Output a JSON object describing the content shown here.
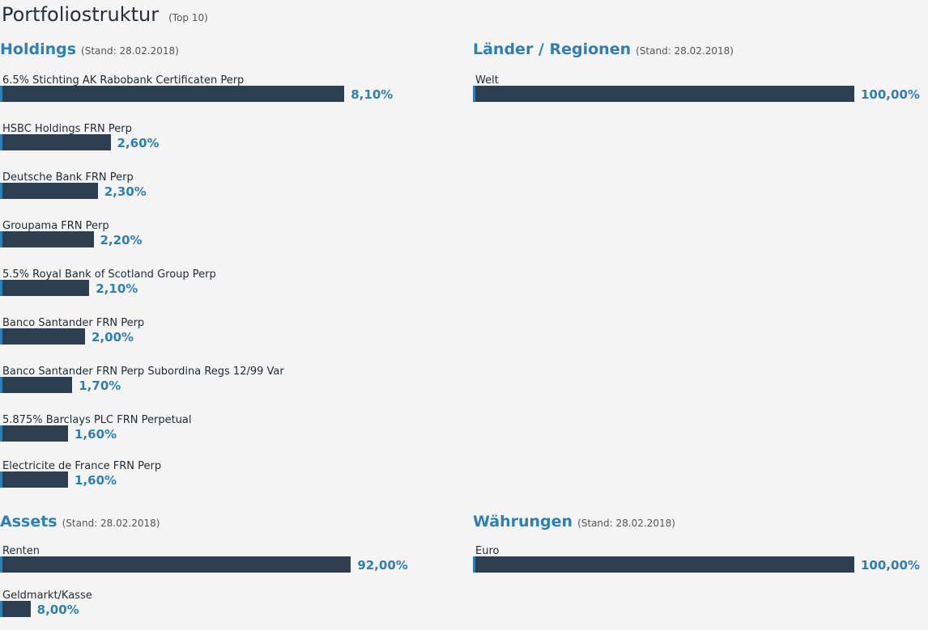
{
  "page": {
    "title": "Portfoliostruktur",
    "subtitle": "(Top 10)"
  },
  "holdings": {
    "title": "Holdings",
    "note": "(Stand: 28.02.2018)",
    "items": [
      {
        "label": "6.5% Stichting AK Rabobank Certificaten Perp",
        "value": 8.1,
        "display": "8,10%"
      },
      {
        "label": "HSBC Holdings FRN Perp",
        "value": 2.6,
        "display": "2,60%"
      },
      {
        "label": "Deutsche Bank FRN Perp",
        "value": 2.3,
        "display": "2,30%"
      },
      {
        "label": "Groupama FRN Perp",
        "value": 2.2,
        "display": "2,20%"
      },
      {
        "label": "5.5% Royal Bank of Scotland Group Perp",
        "value": 2.1,
        "display": "2,10%"
      },
      {
        "label": "Banco Santander FRN Perp",
        "value": 2.0,
        "display": "2,00%"
      },
      {
        "label": "Banco Santander FRN Perp Subordina Regs 12/99 Var",
        "value": 1.7,
        "display": "1,70%"
      },
      {
        "label": "5.875% Barclays PLC FRN Perpetual",
        "value": 1.6,
        "display": "1,60%"
      },
      {
        "label": "Electricite de France FRN Perp",
        "value": 1.6,
        "display": "1,60%"
      }
    ]
  },
  "regions": {
    "title": "Länder / Regionen",
    "note": "(Stand: 28.02.2018)",
    "items": [
      {
        "label": "Welt",
        "value": 100.0,
        "display": "100,00%"
      }
    ]
  },
  "assets": {
    "title": "Assets",
    "note": "(Stand: 28.02.2018)",
    "items": [
      {
        "label": "Renten",
        "value": 92.0,
        "display": "92,00%"
      },
      {
        "label": "Geldmarkt/Kasse",
        "value": 8.0,
        "display": "8,00%"
      }
    ]
  },
  "currencies": {
    "title": "Währungen",
    "note": "(Stand: 28.02.2018)",
    "items": [
      {
        "label": "Euro",
        "value": 100.0,
        "display": "100,00%"
      }
    ]
  },
  "colors": {
    "bar": "#2c3e50",
    "accent": "#2f7fb4"
  },
  "chart_data": [
    {
      "type": "bar",
      "title": "Holdings",
      "categories": [
        "6.5% Stichting AK Rabobank Certificaten Perp",
        "HSBC Holdings FRN Perp",
        "Deutsche Bank FRN Perp",
        "Groupama FRN Perp",
        "5.5% Royal Bank of Scotland Group Perp",
        "Banco Santander FRN Perp",
        "Banco Santander FRN Perp Subordina Regs 12/99 Var",
        "5.875% Barclays PLC FRN Perpetual",
        "Electricite de France FRN Perp"
      ],
      "values": [
        8.1,
        2.6,
        2.3,
        2.2,
        2.1,
        2.0,
        1.7,
        1.6,
        1.6
      ]
    },
    {
      "type": "bar",
      "title": "Länder / Regionen",
      "categories": [
        "Welt"
      ],
      "values": [
        100.0
      ]
    },
    {
      "type": "bar",
      "title": "Assets",
      "categories": [
        "Renten",
        "Geldmarkt/Kasse"
      ],
      "values": [
        92.0,
        8.0
      ]
    },
    {
      "type": "bar",
      "title": "Währungen",
      "categories": [
        "Euro"
      ],
      "values": [
        100.0
      ]
    }
  ]
}
